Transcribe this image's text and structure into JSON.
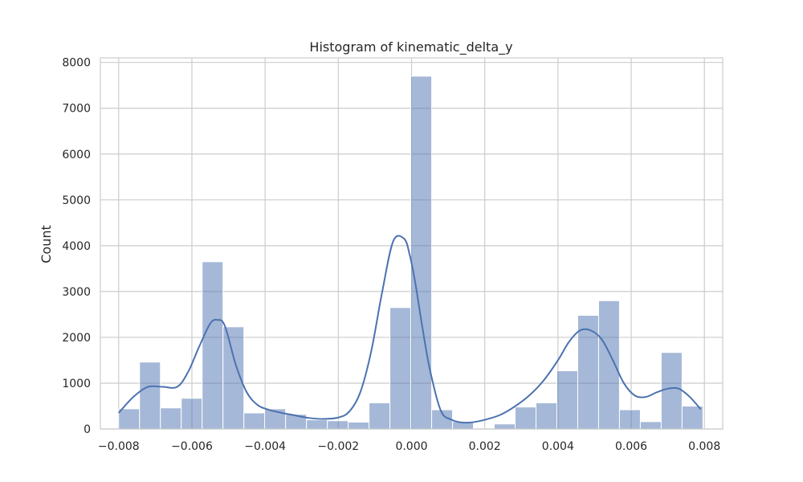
{
  "chart_data": {
    "type": "bar",
    "title": "Histogram of kinematic_delta_y",
    "xlabel": "",
    "ylabel": "Count",
    "xlim": [
      -0.0085,
      0.0085
    ],
    "ylim": [
      0,
      8100
    ],
    "grid": true,
    "colors": {
      "bar_fill": "#4c72b0",
      "kde_line": "#4c72b0",
      "grid": "#cccccc",
      "frame": "#cccccc",
      "text": "#262626"
    },
    "x_ticks": [
      -0.008,
      -0.006,
      -0.004,
      -0.002,
      0.0,
      0.002,
      0.004,
      0.006,
      0.008
    ],
    "x_tick_labels": [
      "−0.008",
      "−0.006",
      "−0.004",
      "−0.002",
      "0.000",
      "0.002",
      "0.004",
      "0.006",
      "0.008"
    ],
    "y_ticks": [
      0,
      1000,
      2000,
      3000,
      4000,
      5000,
      6000,
      7000,
      8000
    ],
    "y_tick_labels": [
      "0",
      "1000",
      "2000",
      "3000",
      "4000",
      "5000",
      "6000",
      "7000",
      "8000"
    ],
    "bins": [
      {
        "x0": -0.008,
        "x1": -0.00743,
        "count": 440
      },
      {
        "x0": -0.00743,
        "x1": -0.00686,
        "count": 1460
      },
      {
        "x0": -0.00686,
        "x1": -0.00629,
        "count": 460
      },
      {
        "x0": -0.00629,
        "x1": -0.00572,
        "count": 670
      },
      {
        "x0": -0.00572,
        "x1": -0.00515,
        "count": 3650
      },
      {
        "x0": -0.00515,
        "x1": -0.00458,
        "count": 2230
      },
      {
        "x0": -0.00458,
        "x1": -0.00401,
        "count": 350
      },
      {
        "x0": -0.00401,
        "x1": -0.00344,
        "count": 440
      },
      {
        "x0": -0.00344,
        "x1": -0.00287,
        "count": 320
      },
      {
        "x0": -0.00287,
        "x1": -0.0023,
        "count": 200
      },
      {
        "x0": -0.0023,
        "x1": -0.00173,
        "count": 180
      },
      {
        "x0": -0.00173,
        "x1": -0.00116,
        "count": 150
      },
      {
        "x0": -0.00116,
        "x1": -0.00059,
        "count": 570
      },
      {
        "x0": -0.00059,
        "x1": -2e-05,
        "count": 2650
      },
      {
        "x0": -2e-05,
        "x1": 0.00055,
        "count": 7700
      },
      {
        "x0": 0.00055,
        "x1": 0.00112,
        "count": 420
      },
      {
        "x0": 0.00112,
        "x1": 0.00169,
        "count": 160
      },
      {
        "x0": 0.00169,
        "x1": 0.00226,
        "count": 0
      },
      {
        "x0": 0.00226,
        "x1": 0.00283,
        "count": 110
      },
      {
        "x0": 0.00283,
        "x1": 0.0034,
        "count": 480
      },
      {
        "x0": 0.0034,
        "x1": 0.00397,
        "count": 570
      },
      {
        "x0": 0.00397,
        "x1": 0.00454,
        "count": 1270
      },
      {
        "x0": 0.00454,
        "x1": 0.00511,
        "count": 2480
      },
      {
        "x0": 0.00511,
        "x1": 0.00568,
        "count": 2800
      },
      {
        "x0": 0.00568,
        "x1": 0.00625,
        "count": 420
      },
      {
        "x0": 0.00625,
        "x1": 0.00682,
        "count": 160
      },
      {
        "x0": 0.00682,
        "x1": 0.00739,
        "count": 1670
      },
      {
        "x0": 0.00739,
        "x1": 0.00796,
        "count": 500
      }
    ],
    "kde": {
      "x": [
        -0.008,
        -0.0076,
        -0.0072,
        -0.0068,
        -0.0064,
        -0.0061,
        -0.0058,
        -0.0055,
        -0.0053,
        -0.0051,
        -0.0048,
        -0.0045,
        -0.0042,
        -0.0039,
        -0.0036,
        -0.0032,
        -0.0028,
        -0.0024,
        -0.002,
        -0.0017,
        -0.0014,
        -0.0011,
        -0.0008,
        -0.0005,
        -0.0002,
        -5e-05,
        0.0001,
        0.0003,
        0.0005,
        0.0008,
        0.0011,
        0.0014,
        0.0017,
        0.002,
        0.0024,
        0.0028,
        0.0032,
        0.0036,
        0.004,
        0.0043,
        0.0046,
        0.0049,
        0.0052,
        0.0055,
        0.0058,
        0.0061,
        0.0064,
        0.0067,
        0.007,
        0.0073,
        0.0076,
        0.0079
      ],
      "y": [
        350,
        700,
        920,
        920,
        920,
        1250,
        1800,
        2300,
        2380,
        2250,
        1400,
        800,
        520,
        420,
        360,
        300,
        240,
        220,
        250,
        380,
        800,
        1700,
        3000,
        4100,
        4150,
        3800,
        3200,
        2200,
        1300,
        400,
        200,
        140,
        150,
        200,
        300,
        480,
        720,
        1050,
        1500,
        1900,
        2150,
        2150,
        1950,
        1500,
        1000,
        730,
        700,
        800,
        880,
        880,
        700,
        430
      ]
    }
  }
}
